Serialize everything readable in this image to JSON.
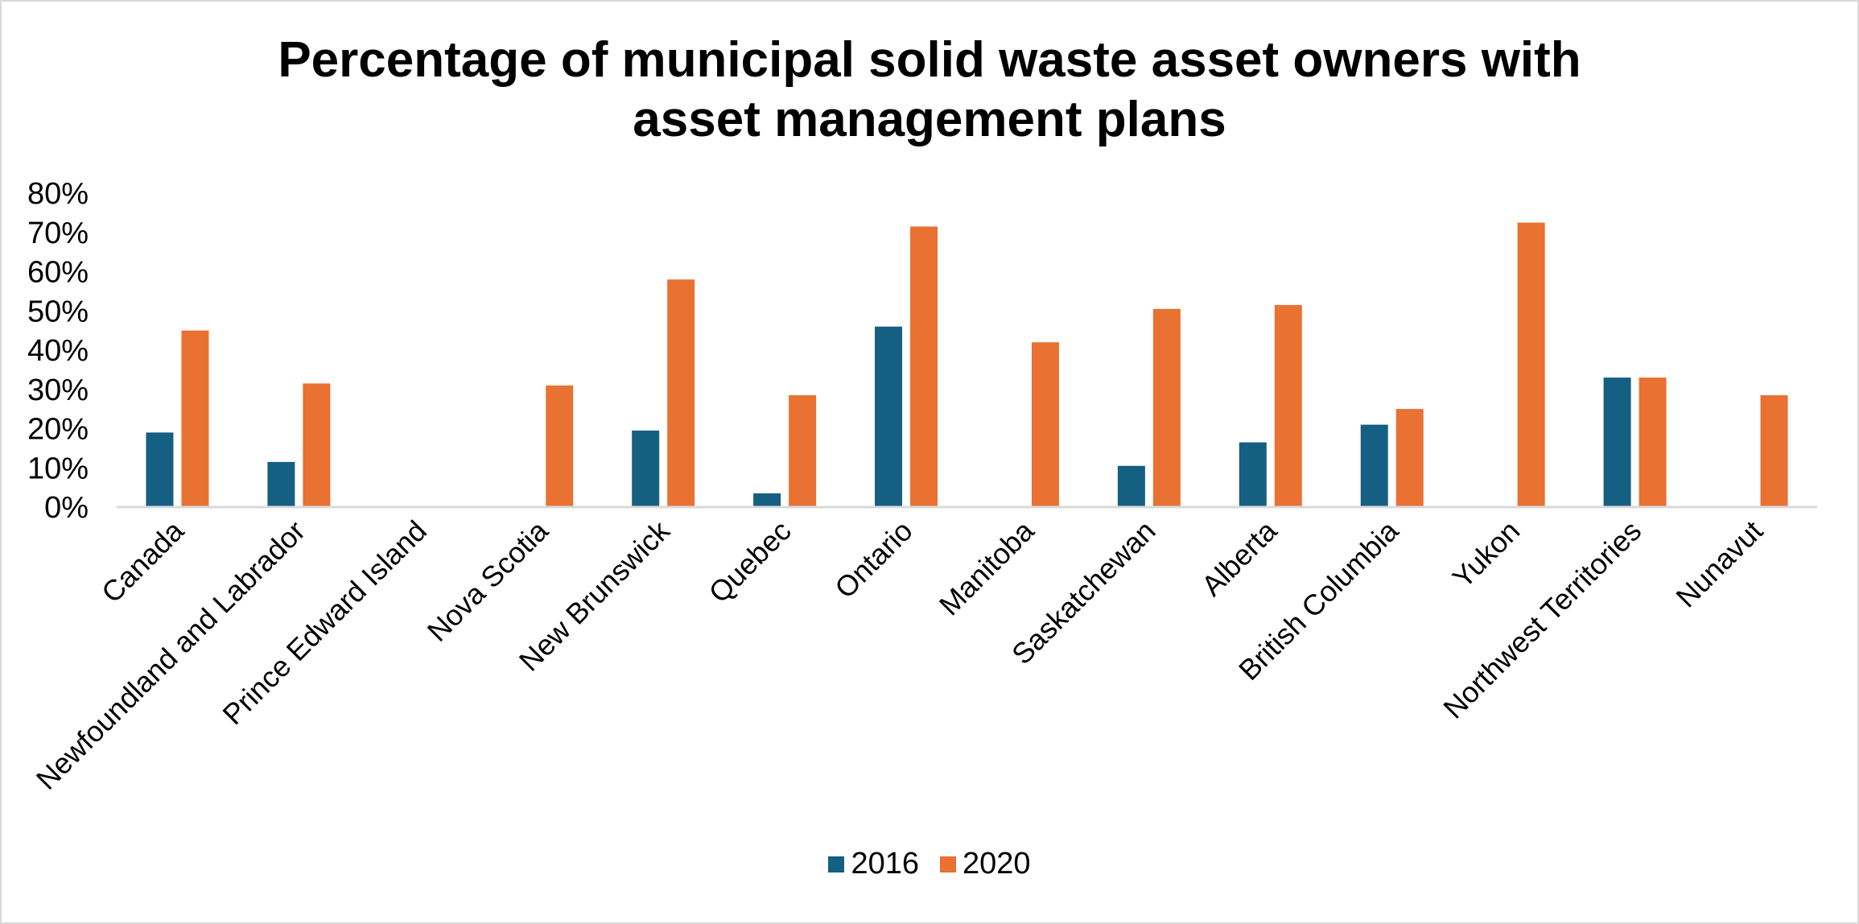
{
  "chart_data": {
    "type": "bar",
    "title": "Percentage of municipal solid waste asset owners with asset management plans",
    "title_lines": [
      "Percentage of municipal solid waste asset owners with",
      "asset management plans"
    ],
    "xlabel": "",
    "ylabel": "",
    "ylim": [
      0,
      0.8
    ],
    "yticks": [
      "0%",
      "10%",
      "20%",
      "30%",
      "40%",
      "50%",
      "60%",
      "70%",
      "80%"
    ],
    "grid": false,
    "legend_position": "bottom",
    "categories": [
      "Canada",
      "Newfoundland and Labrador",
      "Prince Edward Island",
      "Nova Scotia",
      "New Brunswick",
      "Quebec",
      "Ontario",
      "Manitoba",
      "Saskatchewan",
      "Alberta",
      "British Columbia",
      "Yukon",
      "Northwest Territories",
      "Nunavut"
    ],
    "series": [
      {
        "name": "2016",
        "color": "#156082",
        "values": [
          0.19,
          0.115,
          null,
          null,
          0.195,
          0.035,
          0.46,
          null,
          0.105,
          0.165,
          0.21,
          null,
          0.33,
          null
        ]
      },
      {
        "name": "2020",
        "color": "#E97132",
        "values": [
          0.45,
          0.315,
          null,
          0.31,
          0.58,
          0.285,
          0.715,
          0.42,
          0.505,
          0.515,
          0.25,
          0.725,
          0.33,
          0.285
        ]
      }
    ]
  }
}
